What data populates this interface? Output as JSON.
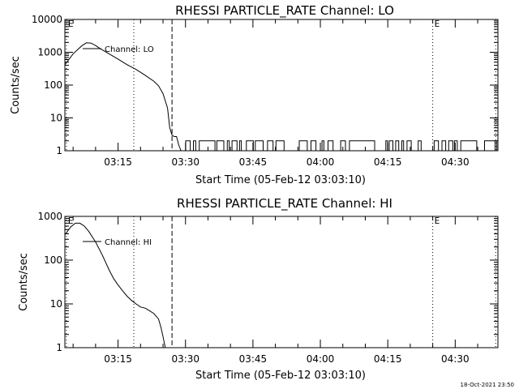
{
  "chart_data": [
    {
      "type": "line",
      "title": "RHESSI PARTICLE_RATE Channel: LO",
      "xlabel": "Start Time (05-Feb-12 03:03:10)",
      "ylabel": "Counts/sec",
      "xlim": [
        "03:03:10",
        "04:39:30"
      ],
      "yscale": "log",
      "ylim": [
        1,
        10000
      ],
      "yticks": [
        {
          "v": 1,
          "label": "1"
        },
        {
          "v": 10,
          "label": "10"
        },
        {
          "v": 100,
          "label": "100"
        },
        {
          "v": 1000,
          "label": "1000"
        },
        {
          "v": 10000,
          "label": "10000"
        }
      ],
      "xticks": [
        "03:15",
        "03:30",
        "03:45",
        "04:00",
        "04:15",
        "04:30"
      ],
      "legend": "Channel: LO",
      "event_markers": [
        {
          "label": "E",
          "time": "03:03:30",
          "style": "dotted"
        },
        {
          "label": "",
          "time": "03:18:30",
          "style": "dotted"
        },
        {
          "label": "",
          "time": "03:27:00",
          "style": "dashed"
        },
        {
          "label": "E",
          "time": "04:25:00",
          "style": "dotted"
        },
        {
          "label": "",
          "time": "04:39:00",
          "style": "dotted"
        }
      ],
      "series": [
        {
          "name": "Channel: LO",
          "x": [
            "03:03:10",
            "03:05:00",
            "03:07:00",
            "03:08:00",
            "03:09:00",
            "03:10:00",
            "03:11:00",
            "03:13:00",
            "03:15:00",
            "03:17:00",
            "03:19:00",
            "03:21:00",
            "03:23:00",
            "03:24:00",
            "03:25:00",
            "03:26:00",
            "03:26:30",
            "03:27:00",
            "03:27:30",
            "03:28:00",
            "03:28:30",
            "03:29:00"
          ],
          "y": [
            420,
            900,
            1600,
            1950,
            1900,
            1600,
            1300,
            900,
            620,
            420,
            300,
            200,
            130,
            95,
            55,
            20,
            5,
            3,
            2.7,
            2.7,
            1.5,
            1
          ]
        }
      ],
      "noise_segment": {
        "from": "03:29:00",
        "to": "04:39:30",
        "min": 1,
        "max": 2,
        "description": "intermittent 1–2 counts/sec"
      }
    },
    {
      "type": "line",
      "title": "RHESSI PARTICLE_RATE Channel: HI",
      "xlabel": "Start Time (05-Feb-12 03:03:10)",
      "ylabel": "Counts/sec",
      "xlim": [
        "03:03:10",
        "04:39:30"
      ],
      "yscale": "log",
      "ylim": [
        1,
        1000
      ],
      "yticks": [
        {
          "v": 1,
          "label": "1"
        },
        {
          "v": 10,
          "label": "10"
        },
        {
          "v": 100,
          "label": "100"
        },
        {
          "v": 1000,
          "label": "1000"
        }
      ],
      "xticks": [
        "03:15",
        "03:30",
        "03:45",
        "04:00",
        "04:15",
        "04:30"
      ],
      "legend": "Channel: HI",
      "event_markers": [
        {
          "label": "E",
          "time": "03:03:30",
          "style": "dotted"
        },
        {
          "label": "",
          "time": "03:18:30",
          "style": "dotted"
        },
        {
          "label": "",
          "time": "03:27:00",
          "style": "dashed"
        },
        {
          "label": "E",
          "time": "04:25:00",
          "style": "dotted"
        },
        {
          "label": "",
          "time": "04:39:00",
          "style": "dotted"
        }
      ],
      "series": [
        {
          "name": "Channel: HI",
          "x": [
            "03:03:10",
            "03:04:30",
            "03:05:30",
            "03:06:30",
            "03:07:30",
            "03:08:30",
            "03:10:00",
            "03:11:30",
            "03:13:00",
            "03:14:00",
            "03:15:00",
            "03:16:00",
            "03:17:00",
            "03:18:00",
            "03:19:00",
            "03:20:00",
            "03:21:00",
            "03:22:00",
            "03:23:00",
            "03:24:00",
            "03:24:30",
            "03:25:00",
            "03:25:30"
          ],
          "y": [
            380,
            580,
            700,
            700,
            600,
            450,
            260,
            130,
            60,
            38,
            27,
            20,
            15,
            12,
            10,
            8.5,
            8,
            7,
            6,
            4.5,
            3,
            1.8,
            1
          ]
        }
      ]
    }
  ],
  "footer": {
    "timestamp": "18-Oct-2021 23:50"
  }
}
